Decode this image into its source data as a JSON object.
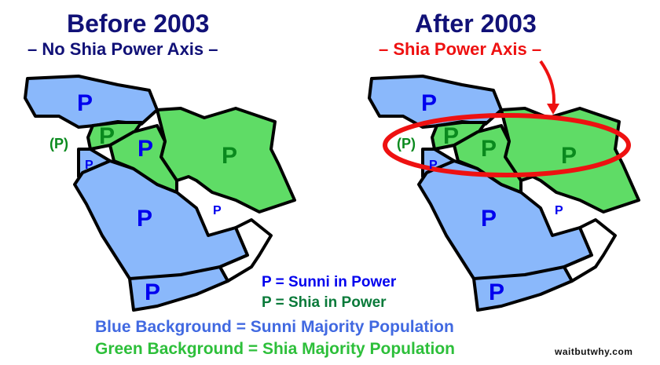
{
  "before": {
    "title": "Before 2003",
    "subtitle": "– No Shia Power Axis –",
    "labels": {
      "turkey": "P",
      "syria": "P",
      "lebanon": "(P)",
      "jordan": "P",
      "iraq": "P",
      "iran": "P",
      "saudi": "P",
      "gulf": "P",
      "yemen": "P"
    },
    "iraq_color": "blue"
  },
  "after": {
    "title": "After 2003",
    "subtitle": "– Shia Power Axis –",
    "labels": {
      "turkey": "P",
      "syria": "P",
      "lebanon": "(P)",
      "jordan": "P",
      "iraq": "P",
      "iran": "P",
      "saudi": "P",
      "gulf": "P",
      "yemen": "P"
    },
    "iraq_color": "green"
  },
  "legend": {
    "sunni_power": "P = Sunni in Power",
    "shia_power": "P = Shia in Power",
    "blue_bg": "Blue Background = Sunni Majority Population",
    "green_bg": "Green Background = Shia Majority Population"
  },
  "credit": "waitbutwhy.com",
  "colors": {
    "sunni_fill": "#8ab8fb",
    "shia_fill": "#5fdc66",
    "sunni_text": "#0000ee",
    "shia_text": "#0a8a1e",
    "title": "#111177",
    "axis_red": "#ee1111",
    "blue_bg_text": "#4169e1",
    "green_bg_text": "#2dbf3a"
  }
}
